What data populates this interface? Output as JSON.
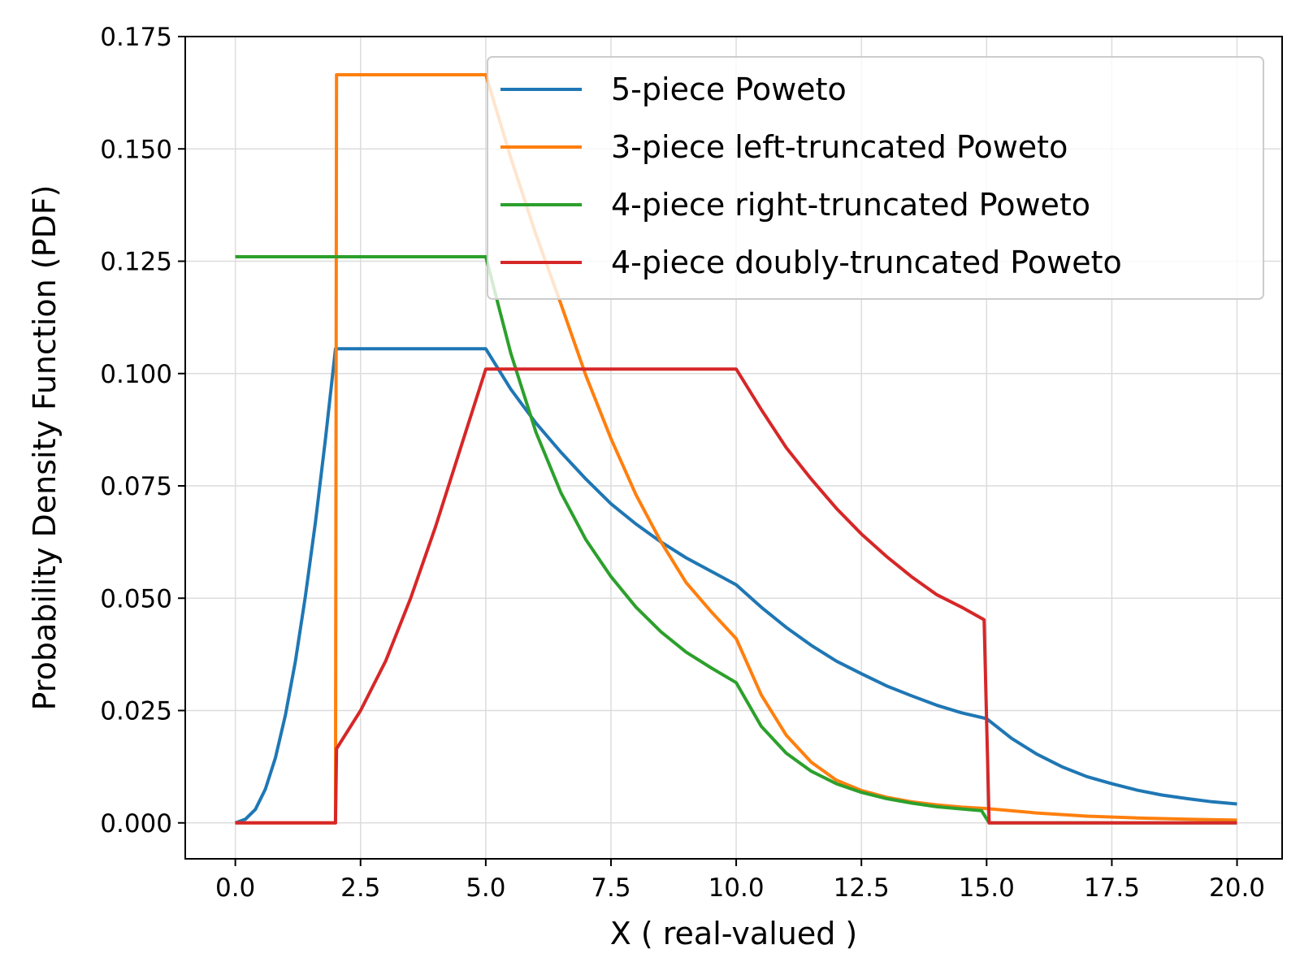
{
  "chart_data": {
    "type": "line",
    "title": "",
    "xlabel": "X ( real-valued )",
    "ylabel": "Probability Density Function (PDF)",
    "xlim": [
      -1.0,
      20.9
    ],
    "ylim": [
      -0.008,
      0.175
    ],
    "xticks": [
      "0.0",
      "2.5",
      "5.0",
      "7.5",
      "10.0",
      "12.5",
      "15.0",
      "17.5",
      "20.0"
    ],
    "xtick_values": [
      0,
      2.5,
      5,
      7.5,
      10,
      12.5,
      15,
      17.5,
      20
    ],
    "yticks": [
      "0.000",
      "0.025",
      "0.050",
      "0.075",
      "0.100",
      "0.125",
      "0.150",
      "0.175"
    ],
    "ytick_values": [
      0,
      0.025,
      0.05,
      0.075,
      0.1,
      0.125,
      0.15,
      0.175
    ],
    "grid": true,
    "legend_position": "top-right",
    "series": [
      {
        "name": "5-piece Poweto",
        "color": "#1f77b4",
        "points": [
          [
            0,
            0
          ],
          [
            0.2,
            0.0008
          ],
          [
            0.4,
            0.003
          ],
          [
            0.6,
            0.0075
          ],
          [
            0.8,
            0.0145
          ],
          [
            1.0,
            0.024
          ],
          [
            1.2,
            0.036
          ],
          [
            1.4,
            0.0505
          ],
          [
            1.6,
            0.067
          ],
          [
            1.8,
            0.0855
          ],
          [
            2.0,
            0.1055
          ],
          [
            3.0,
            0.1055
          ],
          [
            4.0,
            0.1055
          ],
          [
            5.0,
            0.1055
          ],
          [
            5.5,
            0.0965
          ],
          [
            6.0,
            0.089
          ],
          [
            6.5,
            0.0825
          ],
          [
            7.0,
            0.0765
          ],
          [
            7.5,
            0.071
          ],
          [
            8.0,
            0.0665
          ],
          [
            8.5,
            0.0625
          ],
          [
            9.0,
            0.059
          ],
          [
            9.5,
            0.056
          ],
          [
            10.0,
            0.053
          ],
          [
            10.5,
            0.048
          ],
          [
            11.0,
            0.0435
          ],
          [
            11.5,
            0.0395
          ],
          [
            12.0,
            0.036
          ],
          [
            12.5,
            0.0332
          ],
          [
            13.0,
            0.0305
          ],
          [
            13.5,
            0.0283
          ],
          [
            14.0,
            0.0262
          ],
          [
            14.5,
            0.0245
          ],
          [
            15.0,
            0.0232
          ],
          [
            15.5,
            0.0188
          ],
          [
            16.0,
            0.0153
          ],
          [
            16.5,
            0.0125
          ],
          [
            17.0,
            0.0103
          ],
          [
            17.5,
            0.0087
          ],
          [
            18.0,
            0.0073
          ],
          [
            18.5,
            0.0062
          ],
          [
            19.0,
            0.0054
          ],
          [
            19.5,
            0.0047
          ],
          [
            20.0,
            0.0042
          ]
        ]
      },
      {
        "name": "3-piece left-truncated Poweto",
        "color": "#ff7f0e",
        "points": [
          [
            0,
            0
          ],
          [
            2.0,
            0
          ],
          [
            2.02,
            0.1665
          ],
          [
            3.0,
            0.1665
          ],
          [
            4.0,
            0.1665
          ],
          [
            5.0,
            0.1665
          ],
          [
            5.5,
            0.148
          ],
          [
            6.0,
            0.131
          ],
          [
            6.5,
            0.1155
          ],
          [
            7.0,
            0.0995
          ],
          [
            7.5,
            0.0855
          ],
          [
            8.0,
            0.073
          ],
          [
            8.5,
            0.0625
          ],
          [
            9.0,
            0.0535
          ],
          [
            9.5,
            0.047
          ],
          [
            10.0,
            0.041
          ],
          [
            10.5,
            0.0285
          ],
          [
            11.0,
            0.0195
          ],
          [
            11.5,
            0.0135
          ],
          [
            12.0,
            0.0095
          ],
          [
            12.5,
            0.0072
          ],
          [
            13.0,
            0.0057
          ],
          [
            13.5,
            0.0047
          ],
          [
            14.0,
            0.004
          ],
          [
            14.5,
            0.0035
          ],
          [
            15.0,
            0.0032
          ],
          [
            16.0,
            0.0022
          ],
          [
            17.0,
            0.0015
          ],
          [
            18.0,
            0.0011
          ],
          [
            19.0,
            0.0008
          ],
          [
            20.0,
            0.0006
          ]
        ]
      },
      {
        "name": "4-piece right-truncated Poweto",
        "color": "#2ca02c",
        "points": [
          [
            0,
            0.126
          ],
          [
            1.0,
            0.126
          ],
          [
            2.0,
            0.126
          ],
          [
            3.0,
            0.126
          ],
          [
            4.0,
            0.126
          ],
          [
            5.0,
            0.126
          ],
          [
            5.5,
            0.1045
          ],
          [
            6.0,
            0.087
          ],
          [
            6.5,
            0.0735
          ],
          [
            7.0,
            0.063
          ],
          [
            7.5,
            0.0548
          ],
          [
            8.0,
            0.048
          ],
          [
            8.5,
            0.0425
          ],
          [
            9.0,
            0.038
          ],
          [
            9.5,
            0.0345
          ],
          [
            10.0,
            0.0312
          ],
          [
            10.5,
            0.0215
          ],
          [
            11.0,
            0.0155
          ],
          [
            11.5,
            0.0115
          ],
          [
            12.0,
            0.0087
          ],
          [
            12.5,
            0.0068
          ],
          [
            13.0,
            0.0054
          ],
          [
            13.5,
            0.0044
          ],
          [
            14.0,
            0.0036
          ],
          [
            14.5,
            0.0031
          ],
          [
            14.9,
            0.0027
          ],
          [
            15.05,
            0
          ],
          [
            16.0,
            0
          ],
          [
            17.0,
            0
          ],
          [
            18.0,
            0
          ],
          [
            19.0,
            0
          ],
          [
            20.0,
            0
          ]
        ]
      },
      {
        "name": "4-piece doubly-truncated Poweto",
        "color": "#d62728",
        "points": [
          [
            0,
            0
          ],
          [
            2.0,
            0
          ],
          [
            2.02,
            0.0165
          ],
          [
            2.5,
            0.025
          ],
          [
            3.0,
            0.036
          ],
          [
            3.5,
            0.05
          ],
          [
            4.0,
            0.066
          ],
          [
            4.5,
            0.0835
          ],
          [
            5.0,
            0.101
          ],
          [
            6.0,
            0.101
          ],
          [
            7.0,
            0.101
          ],
          [
            8.0,
            0.101
          ],
          [
            9.0,
            0.101
          ],
          [
            10.0,
            0.101
          ],
          [
            10.5,
            0.092
          ],
          [
            11.0,
            0.0835
          ],
          [
            11.5,
            0.0765
          ],
          [
            12.0,
            0.07
          ],
          [
            12.5,
            0.0643
          ],
          [
            13.0,
            0.0593
          ],
          [
            13.5,
            0.0548
          ],
          [
            14.0,
            0.0508
          ],
          [
            14.5,
            0.048
          ],
          [
            14.95,
            0.0452
          ],
          [
            15.05,
            0
          ],
          [
            16.0,
            0
          ],
          [
            17.0,
            0
          ],
          [
            18.0,
            0
          ],
          [
            19.0,
            0
          ],
          [
            20.0,
            0
          ]
        ]
      }
    ]
  }
}
